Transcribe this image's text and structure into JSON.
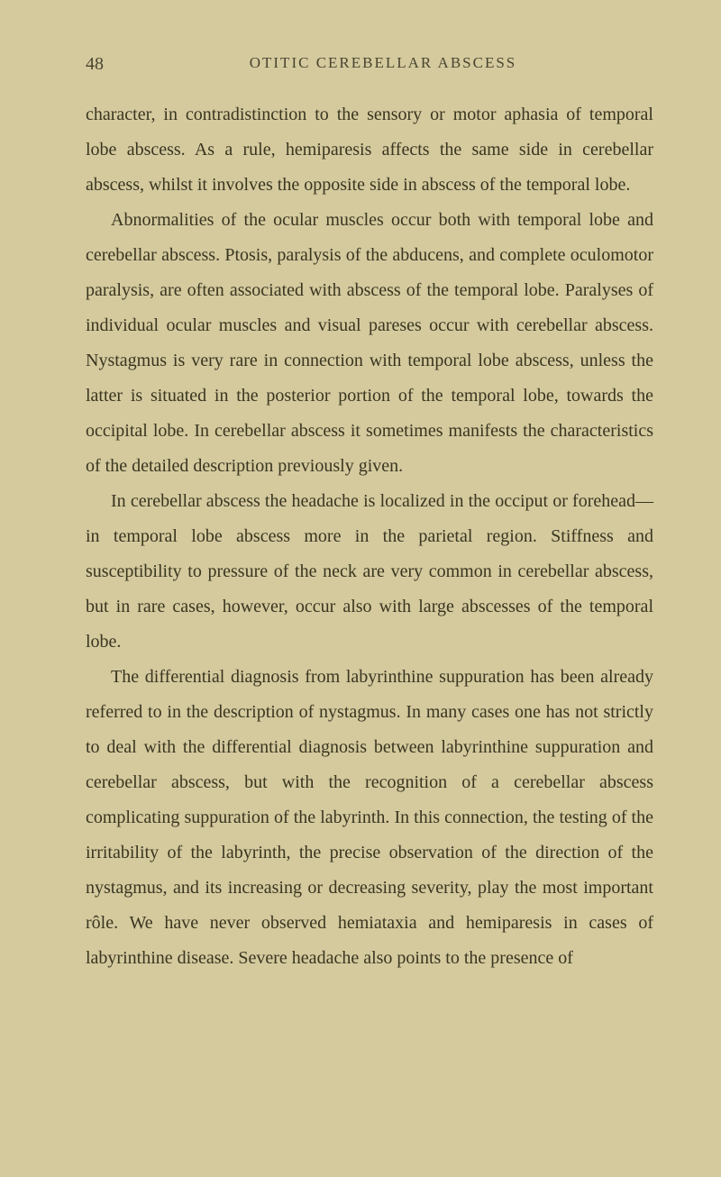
{
  "page_number": "48",
  "running_header": "OTITIC CEREBELLAR ABSCESS",
  "paragraphs": [
    {
      "text": "character, in contradistinction to the sensory or motor aphasia of temporal lobe abscess. As a rule, hemiparesis affects the same side in cerebellar abscess, whilst it involves the opposite side in abscess of the temporal lobe.",
      "indent": false
    },
    {
      "text": "Abnormalities of the ocular muscles occur both with temporal lobe and cerebellar abscess. Ptosis, paralysis of the abducens, and complete oculomotor paralysis, are often associated with abscess of the temporal lobe. Paralyses of individual ocular muscles and visual pareses occur with cerebellar abscess. Nystagmus is very rare in connection with temporal lobe abscess, unless the latter is situated in the posterior portion of the temporal lobe, towards the occipital lobe. In cerebellar abscess it sometimes manifests the characteristics of the detailed description previously given.",
      "indent": true
    },
    {
      "text": "In cerebellar abscess the headache is localized in the occiput or forehead—in temporal lobe abscess more in the parietal region. Stiffness and susceptibility to pressure of the neck are very common in cerebellar abscess, but in rare cases, however, occur also with large abscesses of the temporal lobe.",
      "indent": true
    },
    {
      "text": "The differential diagnosis from labyrinthine suppuration has been already referred to in the description of nystagmus. In many cases one has not strictly to deal with the differential diagnosis between labyrinthine suppuration and cerebellar abscess, but with the recognition of a cerebellar abscess complicating suppuration of the labyrinth. In this connection, the testing of the irritability of the labyrinth, the precise observation of the direction of the nystagmus, and its increasing or decreasing severity, play the most important rôle. We have never observed hemiataxia and hemiparesis in cases of labyrinthine disease. Severe headache also points to the presence of",
      "indent": true
    }
  ]
}
